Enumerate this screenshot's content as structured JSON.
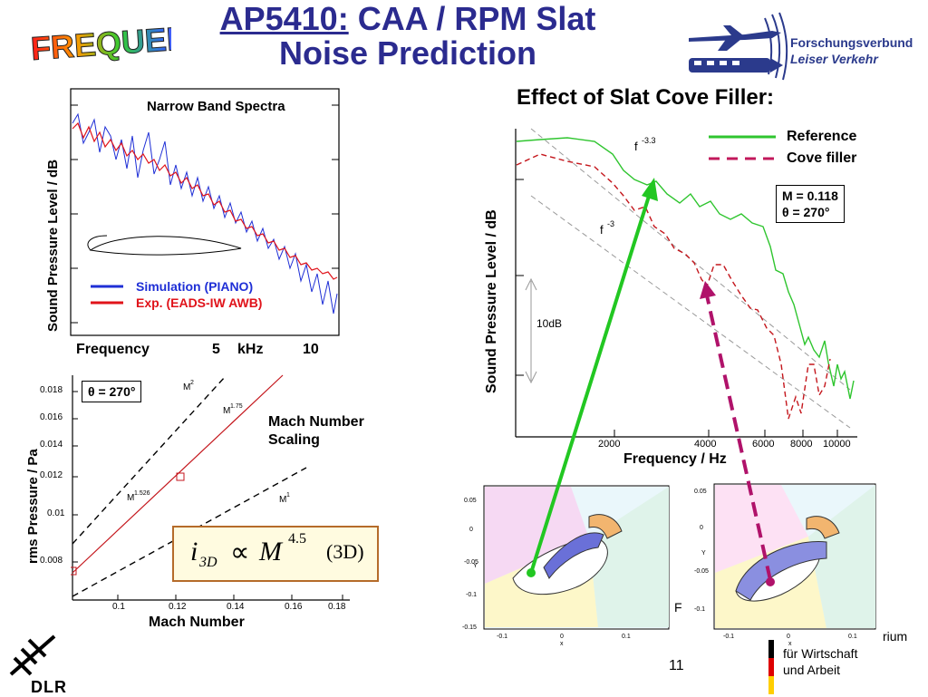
{
  "title": {
    "line1_prefix": "AP5410:",
    "line1_rest": " CAA / RPM Slat",
    "line2": "Noise Prediction"
  },
  "logo": {
    "text": "FREQUENZ"
  },
  "partner": {
    "line1": "Forschungsverbund",
    "line2": "Leiser Verkehr"
  },
  "spectra": {
    "title": "Narrow Band Spectra",
    "ylabel": "Sound Pressure Level / dB",
    "xlabel": "Frequency",
    "xticks": [
      "5",
      "kHz",
      "10"
    ],
    "legend": [
      "Simulation (PIANO)",
      "Exp. (EADS-IW AWB)"
    ],
    "colors": {
      "simulation": "#1f2fd6",
      "experiment": "#e0131a"
    }
  },
  "scaling": {
    "ylabel": "rms Pressure / Pa",
    "xlabel": "Mach Number",
    "theta": "θ = 270°",
    "note_line1": "Mach Number",
    "note_line2": "Scaling",
    "yticks": [
      "0.018",
      "0.016",
      "0.014",
      "0.012",
      "0.01",
      "0.008"
    ],
    "xticks": [
      "0.1",
      "0.12",
      "0.14",
      "0.16",
      "0.18"
    ],
    "line_labels": {
      "m2": "M",
      "m2_exp": "2",
      "m175": "M",
      "m175_exp": "1.75",
      "m1526": "M",
      "m1526_exp": "1.526",
      "m1": "M",
      "m1_exp": "1"
    },
    "formula": {
      "i": "i",
      "sub": "3D",
      "prop": "∝",
      "M": "M",
      "exp": "4.5",
      "tag": "(3D)"
    }
  },
  "cove": {
    "title": "Effect of Slat Cove Filler:",
    "ylabel": "Sound Pressure Level / dB",
    "xlabel": "Frequency  /  Hz",
    "xticks": [
      "2000",
      "4000",
      "6000",
      "8000",
      "10000"
    ],
    "legend": [
      "Reference",
      "Cove filler"
    ],
    "conditions": [
      "M = 0.118",
      "θ = 270°"
    ],
    "scale_label": "10dB",
    "slope_labels": {
      "f33": "f",
      "f33_exp": "-3.3",
      "f3": "f",
      "f3_exp": "-3"
    },
    "colors": {
      "reference": "#2fc52f",
      "cove": "#c2185b",
      "arrow_cove": "#b0126a"
    }
  },
  "mesh": {
    "left_yticks": [
      "0.05",
      "0",
      "-0.05",
      "-0.1",
      "-0.15"
    ],
    "left_xticks": [
      "-0.1",
      "0",
      "0.1"
    ],
    "right_yticks": [
      "0.05",
      "0",
      "-0.05",
      "-0.1"
    ],
    "right_xticks": [
      "-0.1",
      "0",
      "0.1"
    ],
    "axis_x": "x",
    "axis_y": "Y"
  },
  "footer": {
    "dlr": "DLR",
    "page": "11",
    "fragment_f": "F",
    "ministry_fragment": "rium",
    "ministry_line2": "für Wirtschaft",
    "ministry_line3": "und Arbeit"
  }
}
